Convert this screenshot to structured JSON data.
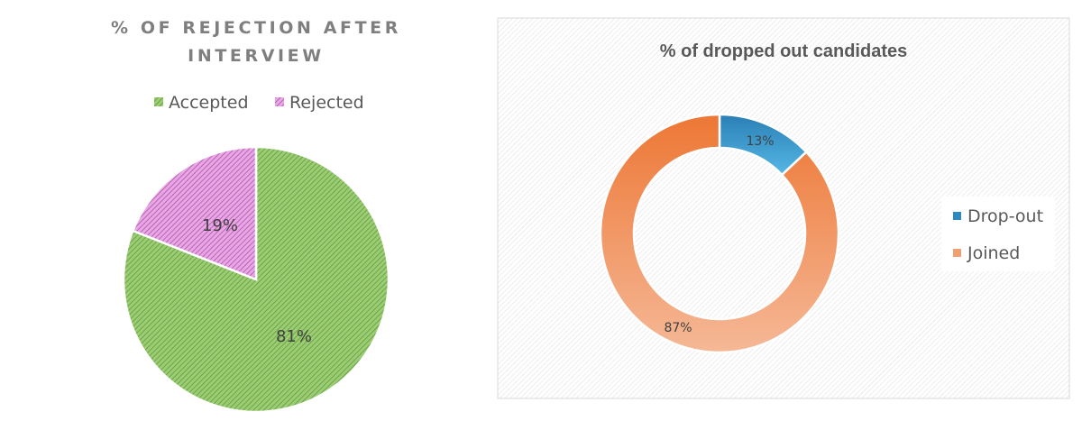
{
  "chart_data": [
    {
      "type": "pie",
      "title": "% OF REJECTION AFTER INTERVIEW",
      "title_lines": [
        "% OF REJECTION AFTER",
        "INTERVIEW"
      ],
      "legend_position": "top",
      "categories": [
        "Accepted",
        "Rejected"
      ],
      "values": [
        81,
        19
      ],
      "labels": [
        "81%",
        "19%"
      ],
      "colors": [
        "#70ad47",
        "#c55ac5"
      ],
      "fill": "diagonal-hatch"
    },
    {
      "type": "pie",
      "subtype": "donut",
      "title": "% of dropped out candidates",
      "legend_position": "right",
      "categories": [
        "Drop-out",
        "Joined"
      ],
      "values": [
        13,
        87
      ],
      "labels": [
        "13%",
        "87%"
      ],
      "colors": [
        "#2e89c0",
        "#ed7d31"
      ],
      "fill": "gradient",
      "background": "hatched-gray"
    }
  ]
}
